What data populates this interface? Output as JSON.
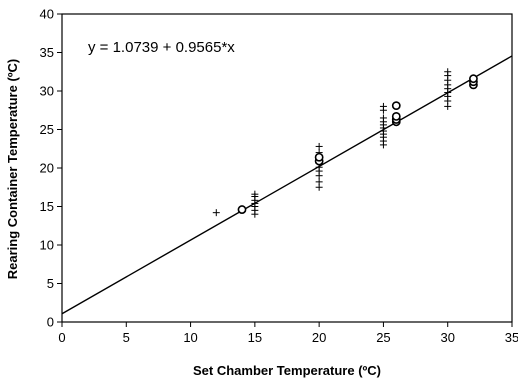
{
  "chart_data": {
    "type": "scatter",
    "xlabel": "Set Chamber Temperature (ºC)",
    "ylabel": "Rearing Container Temperature (ºC)",
    "xlim": [
      0,
      35
    ],
    "ylim": [
      0,
      40
    ],
    "xticks": [
      0,
      5,
      10,
      15,
      20,
      25,
      30,
      35
    ],
    "yticks": [
      0,
      5,
      10,
      15,
      20,
      25,
      30,
      35,
      40
    ],
    "grid": false,
    "legend": "none",
    "annotation": "y = 1.0739 + 0.9565*x",
    "regression": {
      "intercept": 1.0739,
      "slope": 0.9565
    },
    "series": [
      {
        "marker": "plus",
        "points": [
          [
            12,
            14.2
          ],
          [
            15,
            14.0
          ],
          [
            15,
            14.5
          ],
          [
            15,
            15.0
          ],
          [
            15,
            15.4
          ],
          [
            15,
            15.8
          ],
          [
            15,
            16.3
          ],
          [
            15,
            16.6
          ],
          [
            20,
            17.5
          ],
          [
            20,
            18.2
          ],
          [
            20,
            19.0
          ],
          [
            20,
            19.6
          ],
          [
            20,
            20.1
          ],
          [
            20,
            20.6
          ],
          [
            20,
            21.0
          ],
          [
            20,
            21.5
          ],
          [
            20,
            22.0
          ],
          [
            20,
            22.8
          ],
          [
            25,
            23.0
          ],
          [
            25,
            23.5
          ],
          [
            25,
            24.0
          ],
          [
            25,
            24.4
          ],
          [
            25,
            24.8
          ],
          [
            25,
            25.2
          ],
          [
            25,
            25.6
          ],
          [
            25,
            26.0
          ],
          [
            25,
            26.5
          ],
          [
            25,
            27.5
          ],
          [
            25,
            28.0
          ],
          [
            30,
            28.0
          ],
          [
            30,
            28.7
          ],
          [
            30,
            29.3
          ],
          [
            30,
            29.8
          ],
          [
            30,
            30.3
          ],
          [
            30,
            30.8
          ],
          [
            30,
            31.4
          ],
          [
            30,
            32.0
          ],
          [
            30,
            32.5
          ],
          [
            32,
            31.0
          ],
          [
            32,
            31.5
          ]
        ]
      },
      {
        "marker": "circle",
        "points": [
          [
            14,
            14.6
          ],
          [
            20,
            20.9
          ],
          [
            20,
            21.4
          ],
          [
            26,
            26.0
          ],
          [
            26,
            26.3
          ],
          [
            26,
            26.7
          ],
          [
            26,
            28.1
          ],
          [
            32,
            30.8
          ],
          [
            32,
            31.2
          ],
          [
            32,
            31.6
          ]
        ]
      }
    ]
  }
}
